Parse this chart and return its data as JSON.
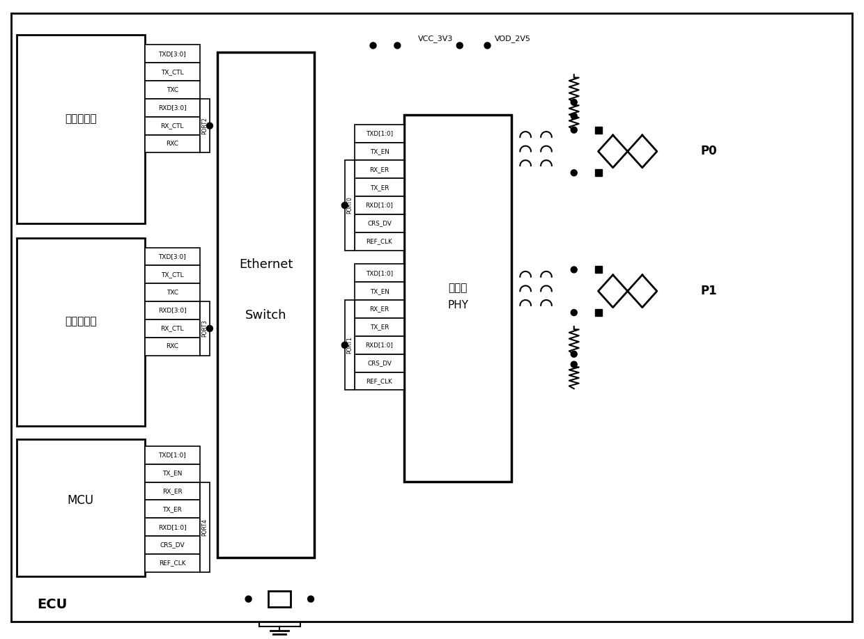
{
  "bg_color": "#ffffff",
  "fig_width": 12.4,
  "fig_height": 9.18,
  "ecu_label": "ECU",
  "processor1_label": "第一处理器",
  "processor2_label": "第二处理器",
  "mcu_label": "MCU",
  "switch_label_1": "Ethernet",
  "switch_label_2": "Switch",
  "phy_label_1": "以太网",
  "phy_label_2": "PHY",
  "p0_label": "P0",
  "p1_label": "P1",
  "vcc_label": "VCC_3V3",
  "vod_label": "VOD_2V5",
  "port2_label": "PORT2",
  "port3_label": "PORT3",
  "port4_label": "PORT4",
  "port0_label": "PORT0",
  "port1_label": "PORT1",
  "proc1_pins": [
    "TXD[3:0]",
    "TX_CTL",
    "TXC",
    "RXD[3:0]",
    "RX_CTL",
    "RXC"
  ],
  "proc2_pins": [
    "TXD[3:0]",
    "TX_CTL",
    "TXC",
    "RXD[3:0]",
    "RX_CTL",
    "RXC"
  ],
  "mcu_pins": [
    "TXD[1:0]",
    "TX_EN",
    "RX_ER",
    "TX_ER",
    "RXD[1:0]",
    "CRS_DV",
    "REF_CLK"
  ],
  "phy_p0_pins": [
    "TXD[1:0]",
    "TX_EN",
    "RX_ER",
    "TX_ER",
    "RXD[1:0]",
    "CRS_DV",
    "REF_CLK"
  ],
  "phy_p1_pins": [
    "TXD[1:0]",
    "TX_EN",
    "RX_ER",
    "TX_ER",
    "RXD[1:0]",
    "CRS_DV",
    "REF_CLK"
  ]
}
